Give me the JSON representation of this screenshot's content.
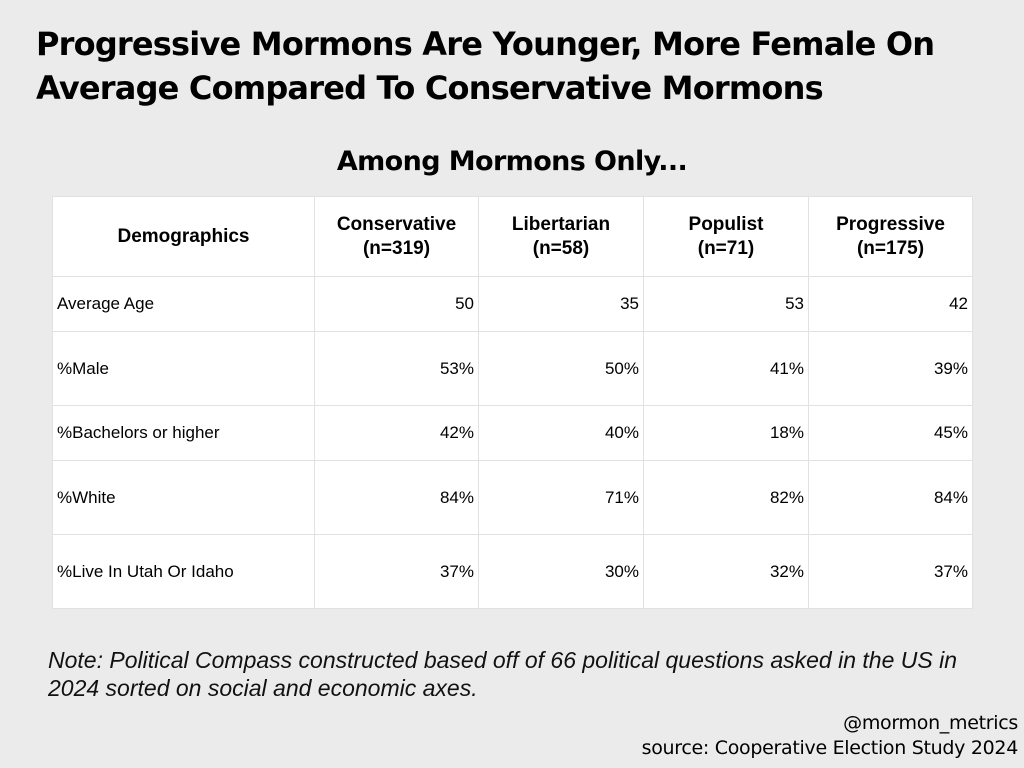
{
  "title": "Progressive Mormons Are Younger, More Female On Average Compared To Conservative Mormons",
  "subtitle": "Among Mormons Only...",
  "chart_data": {
    "type": "table",
    "title": "Progressive Mormons Are Younger, More Female On Average Compared To Conservative Mormons",
    "subtitle": "Among Mormons Only...",
    "corner_header": "Demographics",
    "columns": [
      {
        "name": "Conservative",
        "n": "(n=319)"
      },
      {
        "name": "Libertarian",
        "n": "(n=58)"
      },
      {
        "name": "Populist",
        "n": "(n=71)"
      },
      {
        "name": "Progressive",
        "n": "(n=175)"
      }
    ],
    "rows": [
      {
        "label": "Average Age",
        "values": [
          "50",
          "35",
          "53",
          "42"
        ]
      },
      {
        "label": "%Male",
        "values": [
          "53%",
          "50%",
          "41%",
          "39%"
        ]
      },
      {
        "label": "%Bachelors or higher",
        "values": [
          "42%",
          "40%",
          "18%",
          "45%"
        ]
      },
      {
        "label": "%White",
        "values": [
          "84%",
          "71%",
          "82%",
          "84%"
        ]
      },
      {
        "label": "%Live In Utah Or Idaho",
        "values": [
          "37%",
          "30%",
          "32%",
          "37%"
        ]
      }
    ]
  },
  "note": "Note: Political Compass constructed based off of 66 political questions asked in the US in 2024 sorted on social and economic axes.",
  "handle": "@mormon_metrics",
  "source": "source: Cooperative Election Study 2024",
  "colors": {
    "background": "#ebebeb",
    "table_background": "#ffffff",
    "grid": "#e1e1e1"
  }
}
